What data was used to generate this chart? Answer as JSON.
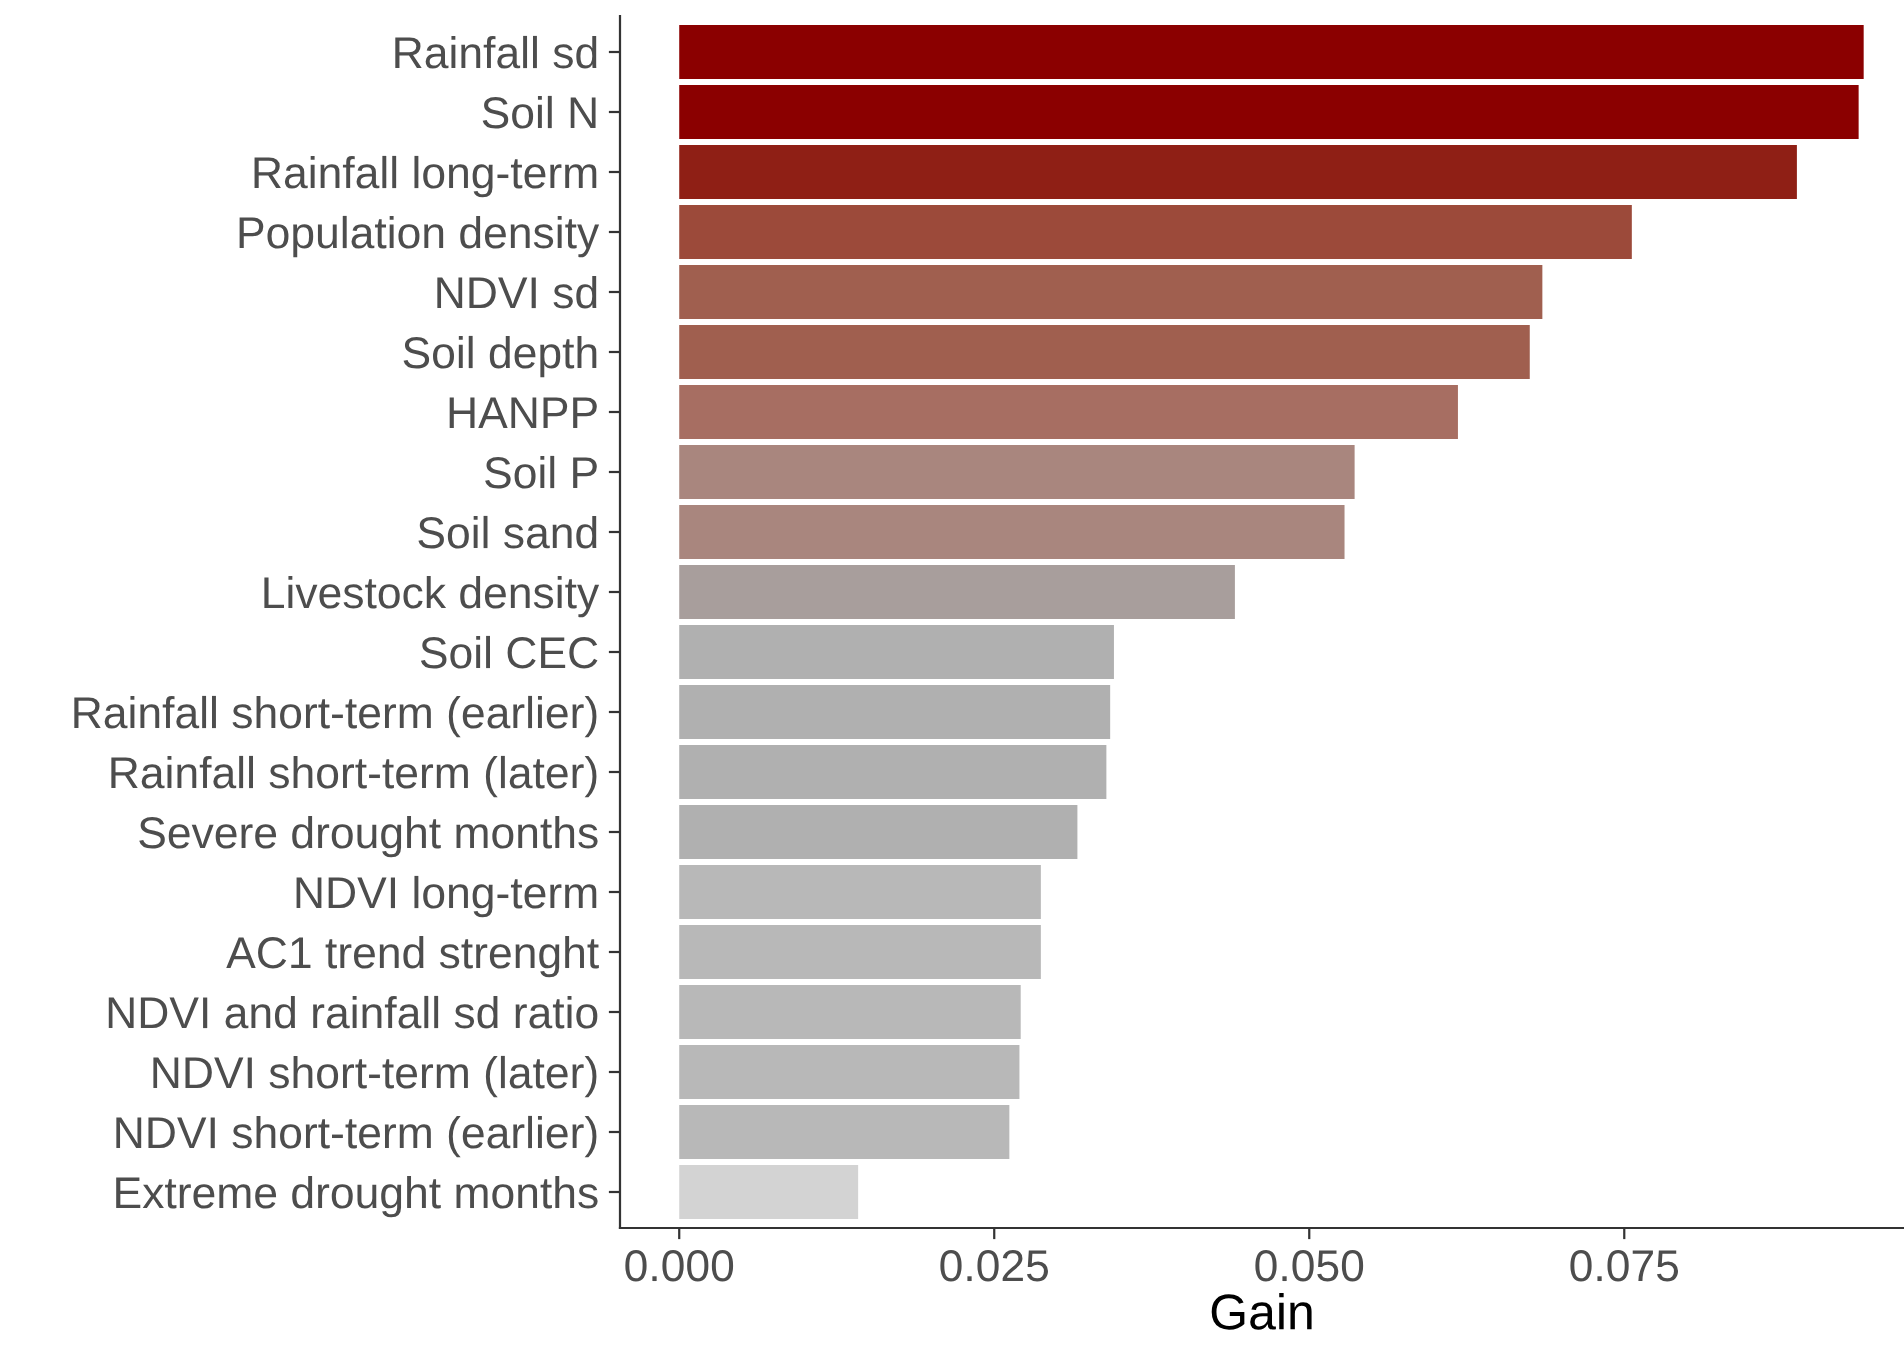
{
  "chart_data": {
    "type": "bar",
    "orientation": "horizontal",
    "xlabel": "Gain",
    "categories": [
      "Rainfall sd",
      "Soil N",
      "Rainfall long-term",
      "Population density",
      "NDVI sd",
      "Soil depth",
      "HANPP",
      "Soil P",
      "Soil sand",
      "Livestock density",
      "Soil CEC",
      "Rainfall short-term (earlier)",
      "Rainfall short-term (later)",
      "Severe drought months",
      "NDVI long-term",
      "AC1 trend strenght",
      "NDVI and rainfall sd ratio",
      "NDVI short-term (later)",
      "NDVI short-term (earlier)",
      "Extreme drought months"
    ],
    "values": [
      0.094,
      0.0936,
      0.0887,
      0.0756,
      0.0685,
      0.0675,
      0.0618,
      0.0536,
      0.0528,
      0.0441,
      0.0345,
      0.0342,
      0.0339,
      0.0316,
      0.0287,
      0.0287,
      0.0271,
      0.027,
      0.0262,
      0.0142
    ],
    "colors": [
      "#8b0000",
      "#8b0000",
      "#8f1f15",
      "#9c4a3a",
      "#a05f4f",
      "#a05f4f",
      "#a76e62",
      "#a9867e",
      "#a9867e",
      "#a89e9c",
      "#b0b0b0",
      "#b0b0b0",
      "#b0b0b0",
      "#b0b0b0",
      "#b8b8b8",
      "#b8b8b8",
      "#b8b8b8",
      "#b8b8b8",
      "#b8b8b8",
      "#d3d3d3"
    ],
    "xlim": [
      -0.0047,
      0.0972
    ],
    "xticks": [
      {
        "value": 0,
        "label": "0.000"
      },
      {
        "value": 0.025,
        "label": "0.025"
      },
      {
        "value": 0.05,
        "label": "0.050"
      },
      {
        "value": 0.075,
        "label": "0.075"
      }
    ],
    "grid": false
  }
}
